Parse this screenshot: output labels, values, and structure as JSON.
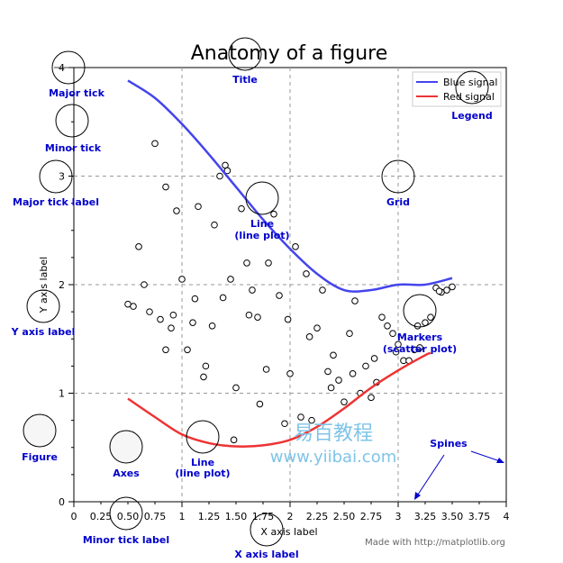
{
  "chart_data": {
    "type": "line",
    "title": "Anatomy of a figure",
    "xlabel": "X axis label",
    "ylabel": "Y axis label",
    "xlim": [
      0,
      4
    ],
    "ylim": [
      0,
      4
    ],
    "grid": true,
    "legend_placement": "top-right",
    "x_major_ticks": [
      "0",
      "1",
      "2",
      "3",
      "4"
    ],
    "x_minor_ticks": [
      "0.25",
      "0.50",
      "0.75",
      "1.25",
      "1.50",
      "1.75",
      "2.25",
      "2.50",
      "2.75",
      "3.25",
      "3.50",
      "3.75"
    ],
    "y_major_ticks": [
      "0",
      "1",
      "2",
      "3",
      "4"
    ],
    "series": [
      {
        "name": "Blue signal",
        "color": "#4444ee",
        "x": [
          0.5,
          0.75,
          1.0,
          1.25,
          1.5,
          1.75,
          2.0,
          2.25,
          2.5,
          2.75,
          3.0,
          3.25,
          3.5
        ],
        "y": [
          3.88,
          3.72,
          3.48,
          3.2,
          2.9,
          2.6,
          2.33,
          2.1,
          1.95,
          1.95,
          2.0,
          2.0,
          2.06
        ]
      },
      {
        "name": "Red signal",
        "color": "#ee3333",
        "x": [
          0.5,
          0.75,
          1.0,
          1.25,
          1.5,
          1.75,
          2.0,
          2.25,
          2.5,
          2.75,
          3.0,
          3.25,
          3.3
        ],
        "y": [
          0.95,
          0.78,
          0.62,
          0.54,
          0.51,
          0.52,
          0.57,
          0.69,
          0.86,
          1.05,
          1.21,
          1.35,
          1.37
        ]
      }
    ],
    "scatter": {
      "x": [
        0.5,
        0.6,
        0.7,
        0.75,
        0.8,
        0.85,
        0.9,
        0.92,
        0.95,
        1.0,
        1.05,
        1.1,
        1.15,
        1.2,
        1.22,
        1.3,
        1.35,
        1.38,
        1.4,
        1.42,
        1.45,
        1.5,
        1.55,
        1.6,
        1.65,
        1.7,
        1.72,
        1.8,
        1.85,
        1.9,
        1.95,
        2.0,
        2.05,
        2.1,
        2.15,
        2.2,
        2.25,
        2.3,
        2.35,
        2.4,
        2.45,
        2.5,
        2.55,
        2.6,
        2.65,
        2.7,
        2.75,
        2.8,
        2.85,
        2.9,
        2.95,
        3.0,
        3.05,
        3.1,
        3.15,
        3.2,
        3.25,
        3.3,
        3.35,
        3.4,
        3.45,
        3.5,
        0.55,
        0.65,
        0.85,
        1.12,
        1.28,
        1.48,
        1.62,
        1.78,
        1.98,
        2.18,
        2.38,
        2.58,
        2.78,
        2.98,
        3.18,
        3.38
      ],
      "y": [
        1.82,
        2.35,
        1.75,
        3.3,
        1.68,
        2.9,
        1.6,
        1.72,
        2.68,
        2.05,
        1.4,
        1.65,
        2.72,
        1.15,
        1.25,
        2.55,
        3.0,
        1.88,
        3.1,
        3.05,
        2.05,
        1.05,
        2.7,
        2.2,
        1.95,
        1.7,
        0.9,
        2.2,
        2.65,
        1.9,
        0.72,
        1.18,
        2.35,
        0.78,
        2.1,
        0.75,
        1.6,
        1.95,
        1.2,
        1.35,
        1.12,
        0.92,
        1.55,
        1.85,
        1.0,
        1.25,
        0.96,
        1.1,
        1.7,
        1.62,
        1.55,
        1.45,
        1.3,
        1.3,
        1.4,
        1.42,
        1.65,
        1.7,
        1.97,
        1.93,
        1.95,
        1.98,
        1.8,
        2.0,
        1.4,
        1.87,
        1.62,
        0.57,
        1.72,
        1.22,
        1.68,
        1.52,
        1.05,
        1.18,
        1.32,
        1.38,
        1.62,
        1.94
      ]
    }
  },
  "annotations": {
    "title": "Title",
    "major_tick": "Major tick",
    "minor_tick": "Minor tick",
    "major_tick_label": "Major tick label",
    "y_axis_label": "Y axis label",
    "figure": "Figure",
    "axes": "Axes",
    "line_plot": [
      "Line",
      "(line plot)"
    ],
    "line_plot_2": [
      "Line",
      "(line plot)"
    ],
    "minor_tick_label": "Minor tick label",
    "x_axis_label": "X axis label",
    "grid": "Grid",
    "legend": "Legend",
    "markers": [
      "Markers",
      "(scatter plot)"
    ],
    "spines": "Spines"
  },
  "watermark": {
    "cn": "易百教程",
    "url": "www.yiibai.com"
  },
  "credit": "Made with http://matplotlib.org"
}
